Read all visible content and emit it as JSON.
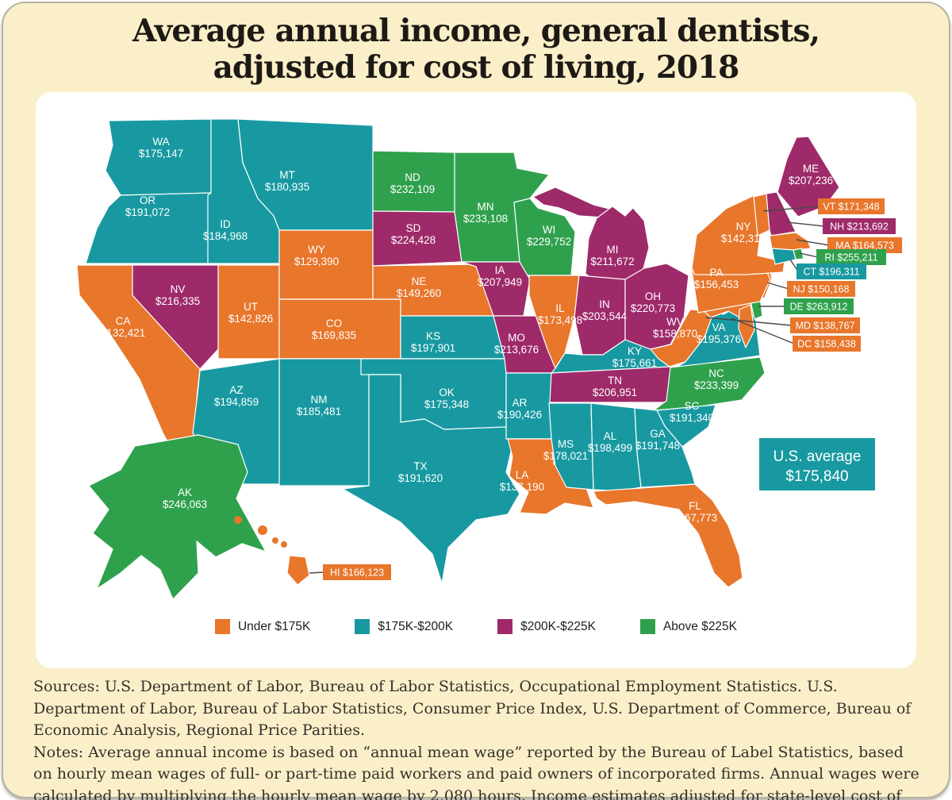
{
  "title": {
    "line1": "Average annual income, general dentists,",
    "line2": "adjusted for cost of living, 2018"
  },
  "chart_data": {
    "type": "choropleth-map",
    "title": "Average annual income, general dentists, adjusted for cost of living, 2018",
    "region": "United States",
    "year": "2018",
    "unit": "USD per year, adjusted for cost of living",
    "categories": [
      {
        "key": "under175",
        "label": "Under $175K",
        "color": "#E8762B"
      },
      {
        "key": "175to200",
        "label": "$175K-$200K",
        "color": "#1899A1"
      },
      {
        "key": "200to225",
        "label": "$200K-$225K",
        "color": "#9E2A69"
      },
      {
        "key": "above225",
        "label": "Above $225K",
        "color": "#2FA14D"
      }
    ],
    "us_average": {
      "label": "U.S. average",
      "value": "$175,840"
    },
    "states": [
      {
        "abbr": "WA",
        "value": "$175,147",
        "category": "175to200"
      },
      {
        "abbr": "OR",
        "value": "$191,072",
        "category": "175to200"
      },
      {
        "abbr": "CA",
        "value": "$132,421",
        "category": "under175"
      },
      {
        "abbr": "ID",
        "value": "$184,968",
        "category": "175to200"
      },
      {
        "abbr": "NV",
        "value": "$216,335",
        "category": "200to225"
      },
      {
        "abbr": "UT",
        "value": "$142,826",
        "category": "under175"
      },
      {
        "abbr": "AZ",
        "value": "$194,859",
        "category": "175to200"
      },
      {
        "abbr": "MT",
        "value": "$180,935",
        "category": "175to200"
      },
      {
        "abbr": "WY",
        "value": "$129,390",
        "category": "under175"
      },
      {
        "abbr": "CO",
        "value": "$169,835",
        "category": "under175"
      },
      {
        "abbr": "NM",
        "value": "$185,481",
        "category": "175to200"
      },
      {
        "abbr": "ND",
        "value": "$232,109",
        "category": "above225"
      },
      {
        "abbr": "SD",
        "value": "$224,428",
        "category": "200to225"
      },
      {
        "abbr": "NE",
        "value": "$149,260",
        "category": "under175"
      },
      {
        "abbr": "KS",
        "value": "$197,901",
        "category": "175to200"
      },
      {
        "abbr": "OK",
        "value": "$175,348",
        "category": "175to200"
      },
      {
        "abbr": "TX",
        "value": "$191,620",
        "category": "175to200"
      },
      {
        "abbr": "MN",
        "value": "$233,108",
        "category": "above225"
      },
      {
        "abbr": "IA",
        "value": "$207,949",
        "category": "200to225"
      },
      {
        "abbr": "MO",
        "value": "$213,676",
        "category": "200to225"
      },
      {
        "abbr": "AR",
        "value": "$190,426",
        "category": "175to200"
      },
      {
        "abbr": "LA",
        "value": "$137,190",
        "category": "under175"
      },
      {
        "abbr": "WI",
        "value": "$229,752",
        "category": "above225"
      },
      {
        "abbr": "IL",
        "value": "$173,498",
        "category": "under175"
      },
      {
        "abbr": "MS",
        "value": "$178,021",
        "category": "175to200"
      },
      {
        "abbr": "MI",
        "value": "$211,672",
        "category": "200to225"
      },
      {
        "abbr": "IN",
        "value": "$203,544",
        "category": "200to225"
      },
      {
        "abbr": "KY",
        "value": "$175,661",
        "category": "175to200"
      },
      {
        "abbr": "TN",
        "value": "$206,951",
        "category": "200to225"
      },
      {
        "abbr": "AL",
        "value": "$198,499",
        "category": "175to200"
      },
      {
        "abbr": "OH",
        "value": "$220,773",
        "category": "200to225"
      },
      {
        "abbr": "WV",
        "value": "$158,870",
        "category": "under175"
      },
      {
        "abbr": "VA",
        "value": "$195,376",
        "category": "175to200"
      },
      {
        "abbr": "MD",
        "value": "$138,767",
        "category": "under175"
      },
      {
        "abbr": "DE",
        "value": "$263,912",
        "category": "above225"
      },
      {
        "abbr": "NJ",
        "value": "$150,168",
        "category": "under175"
      },
      {
        "abbr": "PA",
        "value": "$156,453",
        "category": "under175"
      },
      {
        "abbr": "NY",
        "value": "$142,318",
        "category": "under175"
      },
      {
        "abbr": "VT",
        "value": "$171,348",
        "category": "under175"
      },
      {
        "abbr": "NH",
        "value": "$213,692",
        "category": "200to225"
      },
      {
        "abbr": "MA",
        "value": "$164,573",
        "category": "under175"
      },
      {
        "abbr": "RI",
        "value": "$255,211",
        "category": "above225"
      },
      {
        "abbr": "CT",
        "value": "$196,311",
        "category": "175to200"
      },
      {
        "abbr": "ME",
        "value": "$207,236",
        "category": "200to225"
      },
      {
        "abbr": "NC",
        "value": "$233,399",
        "category": "above225"
      },
      {
        "abbr": "SC",
        "value": "$191,340",
        "category": "175to200"
      },
      {
        "abbr": "GA",
        "value": "$191,748",
        "category": "175to200"
      },
      {
        "abbr": "FL",
        "value": "$167,773",
        "category": "under175"
      },
      {
        "abbr": "AK",
        "value": "$246,063",
        "category": "above225"
      },
      {
        "abbr": "HI",
        "value": "$166,123",
        "category": "under175"
      },
      {
        "abbr": "DC",
        "value": "$158,438",
        "category": "under175"
      }
    ]
  },
  "footer": {
    "sources": "Sources: U.S. Department of Labor, Bureau of Labor Statistics, Occupational Employment Statistics. U.S. Department of Labor, Bureau of Labor Statistics, Consumer Price Index, U.S. Department of Commerce, Bureau of Economic Analysis, Regional Price Parities.",
    "notes": "Notes: Average annual income is based on “annual mean wage” reported by the Bureau of Label Statistics, based on hourly mean wages of full- or part-time paid workers and paid owners of incorporated firms. Annual wages were calculated by multiplying the hourly mean wage by 2,080 hours. Income estimates adjusted for state-level cost of living are equal to the unadjusted state-level income estimate divided by the state’s Regional Price Parity Index."
  }
}
